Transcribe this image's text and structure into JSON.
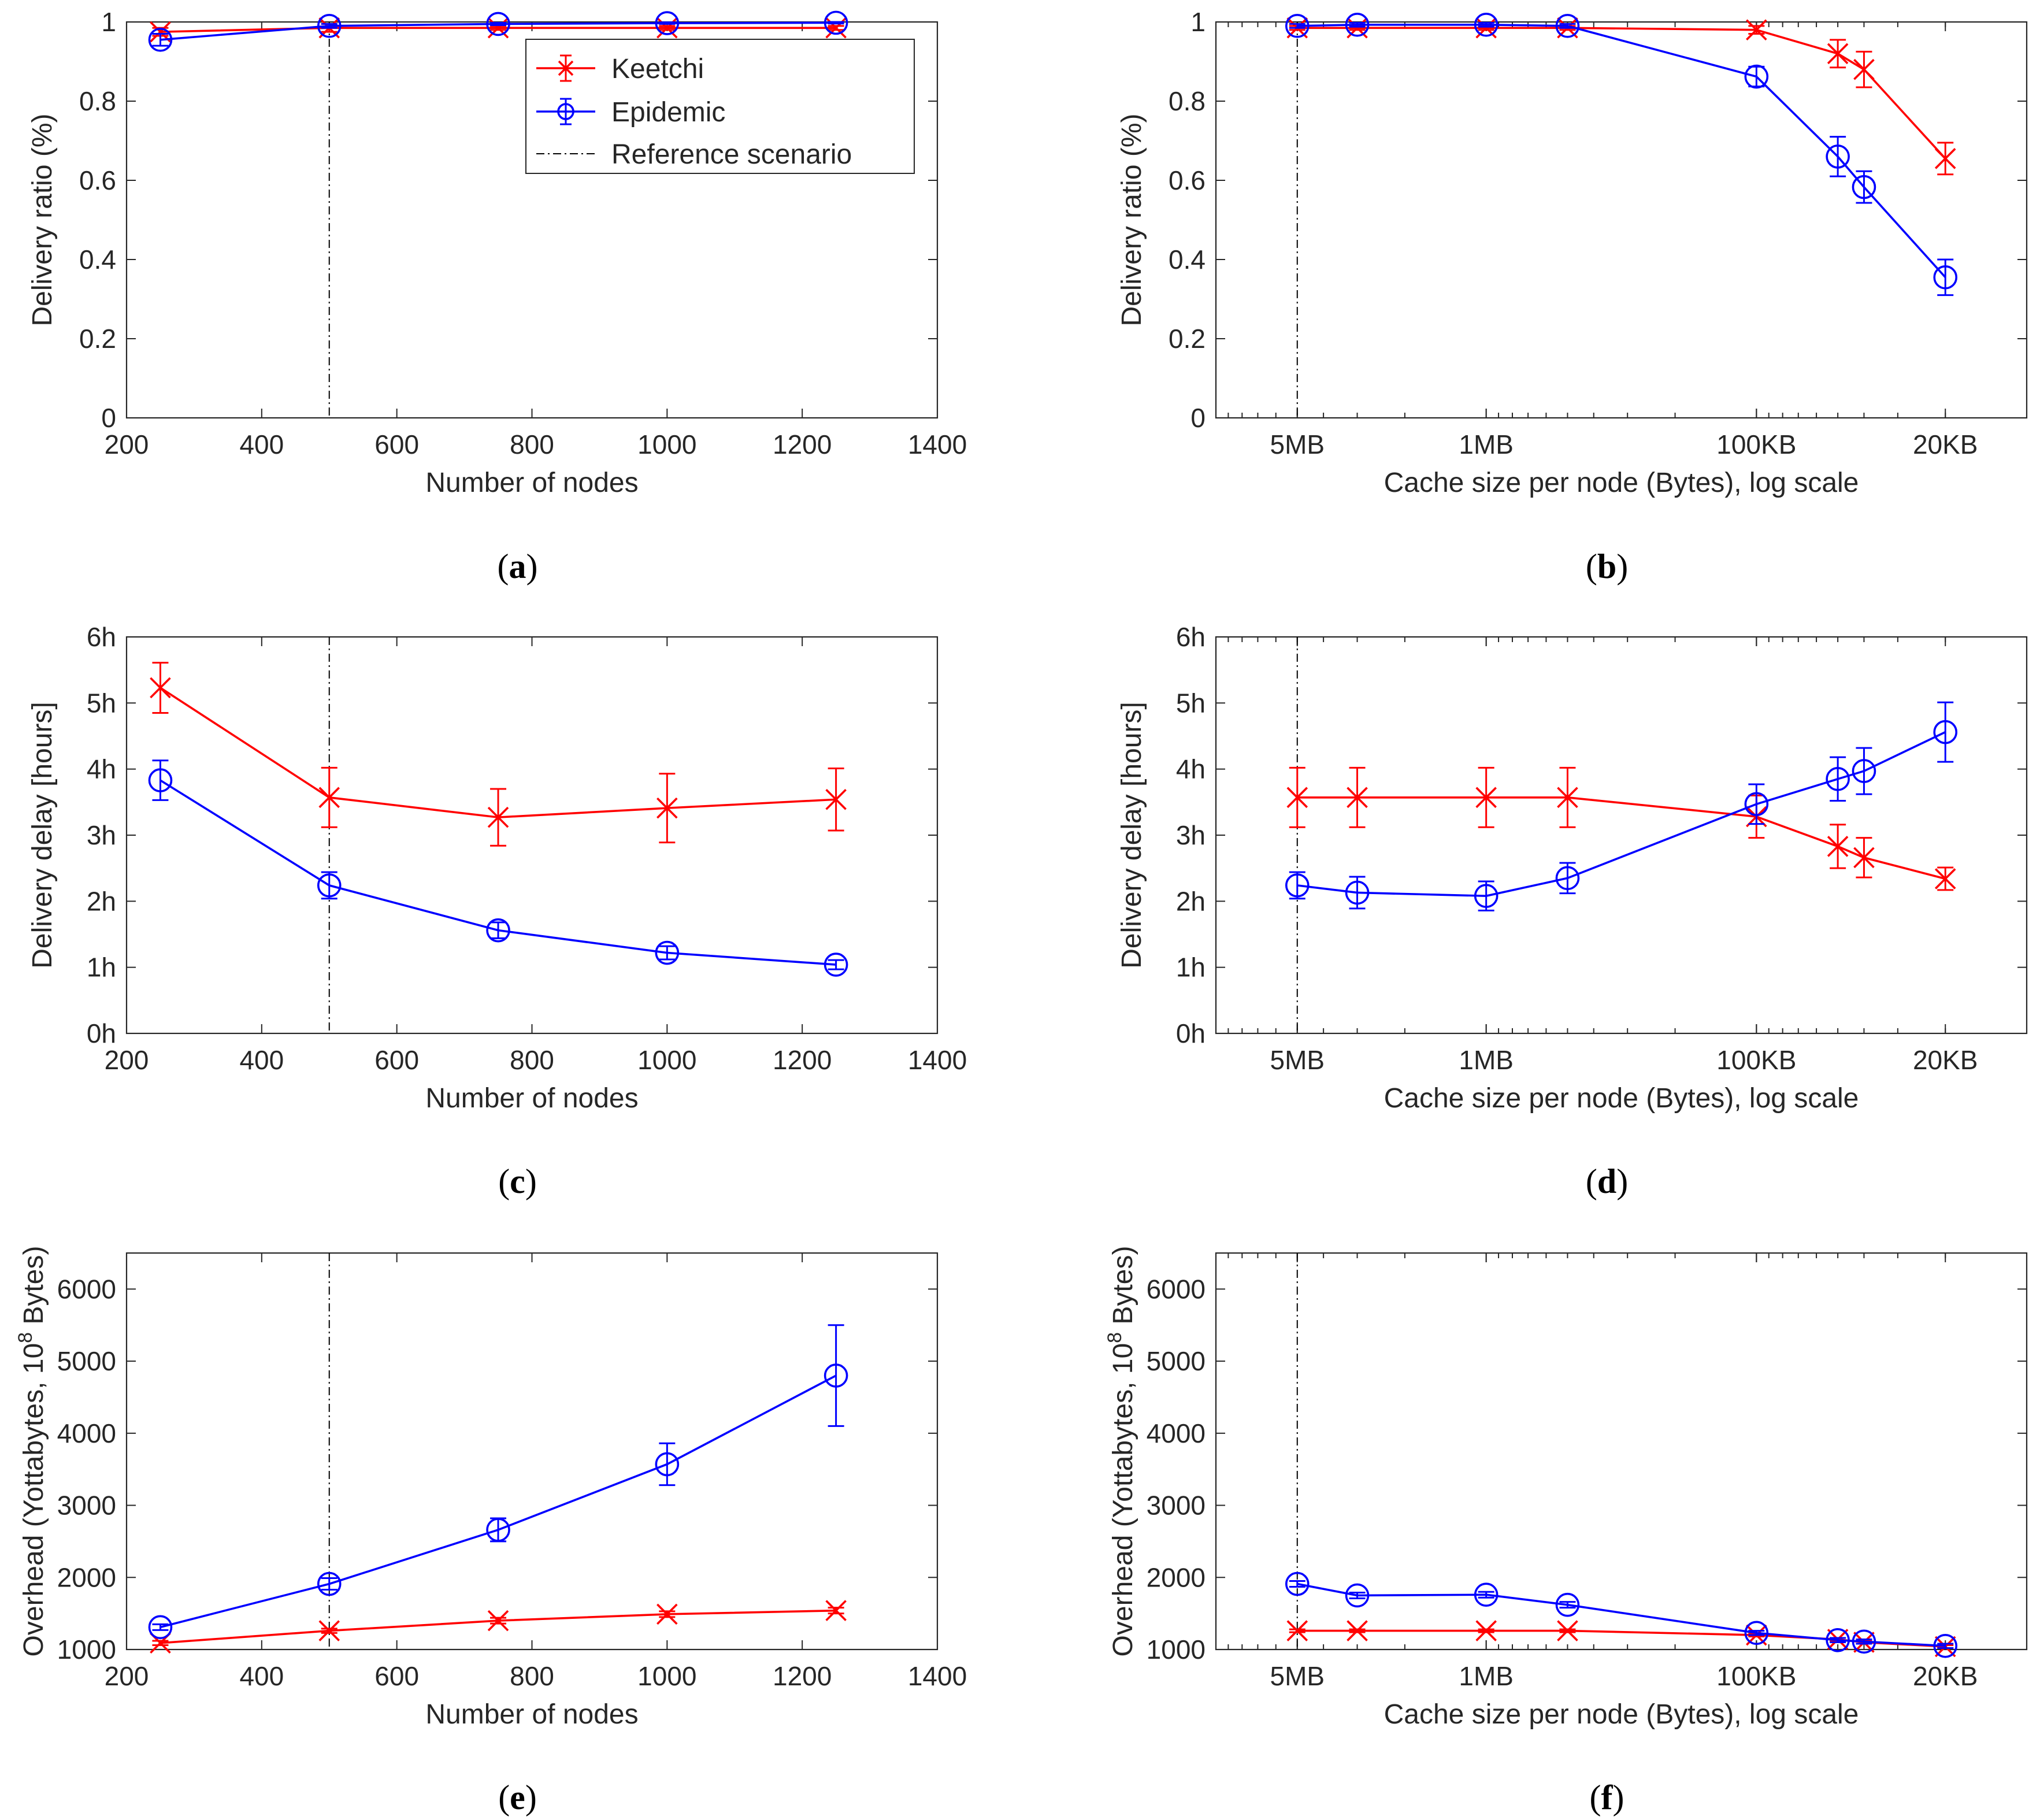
{
  "figure": {
    "legend": {
      "entries": [
        "Keetchi",
        "Epidemic",
        "Reference scenario"
      ]
    },
    "colors": {
      "keetchi": "#ff0000",
      "epidemic": "#0000ff",
      "reference": "#000000"
    }
  },
  "chart_data": [
    {
      "id": "a",
      "type": "line",
      "caption_letter": "a",
      "xlabel": "Number of nodes",
      "ylabel": "Delivery ratio (%)",
      "xscale": "linear",
      "xlim": [
        200,
        1400
      ],
      "ylim": [
        0,
        1
      ],
      "xticks": [
        200,
        400,
        600,
        800,
        1000,
        1200,
        1400
      ],
      "xtick_labels": [
        "200",
        "400",
        "600",
        "800",
        "1000",
        "1200",
        "1400"
      ],
      "yticks": [
        0,
        0.2,
        0.4,
        0.6,
        0.8,
        1
      ],
      "ytick_labels": [
        "0",
        "0.2",
        "0.4",
        "0.6",
        "0.8",
        "1"
      ],
      "reference_x": 500,
      "legend": true,
      "legend_position": "top-right",
      "series": [
        {
          "name": "Keetchi",
          "marker": "x",
          "x": [
            250,
            500,
            750,
            1000,
            1250
          ],
          "y": [
            0.975,
            0.985,
            0.985,
            0.985,
            0.985
          ],
          "err": [
            0.01,
            0.01,
            0.005,
            0.005,
            0.005
          ]
        },
        {
          "name": "Epidemic",
          "marker": "o",
          "x": [
            250,
            500,
            750,
            1000,
            1250
          ],
          "y": [
            0.955,
            0.99,
            0.995,
            0.997,
            0.998
          ],
          "err": [
            0.015,
            0.005,
            0.003,
            0.002,
            0.002
          ]
        }
      ]
    },
    {
      "id": "b",
      "type": "line",
      "caption_letter": "b",
      "xlabel": "Cache size per node (Bytes), log scale",
      "ylabel": "Delivery ratio (%)",
      "xscale": "log-reversed",
      "xlim": [
        10000000,
        10000
      ],
      "ylim": [
        0,
        1
      ],
      "xticks": [
        5000000,
        1000000,
        100000,
        20000
      ],
      "xtick_labels": [
        "5MB",
        "1MB",
        "100KB",
        "20KB"
      ],
      "yticks": [
        0,
        0.2,
        0.4,
        0.6,
        0.8,
        1
      ],
      "ytick_labels": [
        "0",
        "0.2",
        "0.4",
        "0.6",
        "0.8",
        "1"
      ],
      "reference_x": 5000000,
      "legend": false,
      "series": [
        {
          "name": "Keetchi",
          "marker": "x",
          "x": [
            5000000,
            3000000,
            1000000,
            500000,
            100000,
            50000,
            40000,
            20000
          ],
          "y": [
            0.985,
            0.985,
            0.985,
            0.985,
            0.98,
            0.92,
            0.88,
            0.655
          ],
          "err": [
            0.005,
            0.005,
            0.005,
            0.005,
            0.01,
            0.035,
            0.045,
            0.04
          ]
        },
        {
          "name": "Epidemic",
          "marker": "o",
          "x": [
            5000000,
            3000000,
            1000000,
            500000,
            100000,
            50000,
            40000,
            20000
          ],
          "y": [
            0.99,
            0.993,
            0.993,
            0.99,
            0.862,
            0.66,
            0.583,
            0.355
          ],
          "err": [
            0.005,
            0.005,
            0.005,
            0.005,
            0.025,
            0.05,
            0.04,
            0.045
          ]
        }
      ]
    },
    {
      "id": "c",
      "type": "line",
      "caption_letter": "c",
      "xlabel": "Number of nodes",
      "ylabel": "Delivery delay [hours]",
      "xscale": "linear",
      "xlim": [
        200,
        1400
      ],
      "ylim": [
        0,
        6
      ],
      "xticks": [
        200,
        400,
        600,
        800,
        1000,
        1200,
        1400
      ],
      "xtick_labels": [
        "200",
        "400",
        "600",
        "800",
        "1000",
        "1200",
        "1400"
      ],
      "yticks": [
        0,
        1,
        2,
        3,
        4,
        5,
        6
      ],
      "ytick_labels": [
        "0h",
        "1h",
        "2h",
        "3h",
        "4h",
        "5h",
        "6h"
      ],
      "reference_x": 500,
      "legend": false,
      "series": [
        {
          "name": "Keetchi",
          "marker": "x",
          "x": [
            250,
            500,
            750,
            1000,
            1250
          ],
          "y": [
            5.23,
            3.57,
            3.27,
            3.41,
            3.54
          ],
          "err": [
            0.38,
            0.45,
            0.43,
            0.52,
            0.47
          ]
        },
        {
          "name": "Epidemic",
          "marker": "o",
          "x": [
            250,
            500,
            750,
            1000,
            1250
          ],
          "y": [
            3.83,
            2.24,
            1.56,
            1.22,
            1.04
          ],
          "err": [
            0.3,
            0.2,
            0.12,
            0.1,
            0.07
          ]
        }
      ]
    },
    {
      "id": "d",
      "type": "line",
      "caption_letter": "d",
      "xlabel": "Cache size per node (Bytes), log scale",
      "ylabel": "Delivery delay [hours]",
      "xscale": "log-reversed",
      "xlim": [
        10000000,
        10000
      ],
      "ylim": [
        0,
        6
      ],
      "xticks": [
        5000000,
        1000000,
        100000,
        20000
      ],
      "xtick_labels": [
        "5MB",
        "1MB",
        "100KB",
        "20KB"
      ],
      "yticks": [
        0,
        1,
        2,
        3,
        4,
        5,
        6
      ],
      "ytick_labels": [
        "0h",
        "1h",
        "2h",
        "3h",
        "4h",
        "5h",
        "6h"
      ],
      "reference_x": 5000000,
      "legend": false,
      "series": [
        {
          "name": "Keetchi",
          "marker": "x",
          "x": [
            5000000,
            3000000,
            1000000,
            500000,
            100000,
            50000,
            40000,
            20000
          ],
          "y": [
            3.57,
            3.57,
            3.57,
            3.57,
            3.28,
            2.83,
            2.66,
            2.34
          ],
          "err": [
            0.45,
            0.45,
            0.45,
            0.45,
            0.32,
            0.33,
            0.3,
            0.17
          ]
        },
        {
          "name": "Epidemic",
          "marker": "o",
          "x": [
            5000000,
            3000000,
            1000000,
            500000,
            100000,
            50000,
            40000,
            20000
          ],
          "y": [
            2.24,
            2.13,
            2.08,
            2.35,
            3.47,
            3.85,
            3.97,
            4.56
          ],
          "err": [
            0.2,
            0.24,
            0.22,
            0.23,
            0.3,
            0.33,
            0.35,
            0.45
          ]
        }
      ]
    },
    {
      "id": "e",
      "type": "line",
      "caption_letter": "e",
      "xlabel": "Number of nodes",
      "ylabel_prefix": "Overhead (Yottabytes, 10",
      "ylabel_exp": "8",
      "ylabel_suffix": " Bytes)",
      "xscale": "linear",
      "xlim": [
        200,
        1400
      ],
      "ylim": [
        1000,
        6500
      ],
      "xticks": [
        200,
        400,
        600,
        800,
        1000,
        1200,
        1400
      ],
      "xtick_labels": [
        "200",
        "400",
        "600",
        "800",
        "1000",
        "1200",
        "1400"
      ],
      "yticks": [
        1000,
        2000,
        3000,
        4000,
        5000,
        6000
      ],
      "ytick_labels": [
        "1000",
        "2000",
        "3000",
        "4000",
        "5000",
        "6000"
      ],
      "reference_x": 500,
      "legend": false,
      "series": [
        {
          "name": "Keetchi",
          "marker": "x",
          "x": [
            250,
            500,
            750,
            1000,
            1250
          ],
          "y": [
            1090,
            1260,
            1400,
            1490,
            1540
          ],
          "err": [
            30,
            30,
            40,
            40,
            40
          ]
        },
        {
          "name": "Epidemic",
          "marker": "o",
          "x": [
            250,
            500,
            750,
            1000,
            1250
          ],
          "y": [
            1310,
            1910,
            2660,
            3570,
            4800
          ],
          "err": [
            40,
            80,
            160,
            290,
            700
          ]
        }
      ]
    },
    {
      "id": "f",
      "type": "line",
      "caption_letter": "f",
      "xlabel": "Cache size per node (Bytes), log scale",
      "ylabel_prefix": "Overhead (Yottabytes, 10",
      "ylabel_exp": "8",
      "ylabel_suffix": " Bytes)",
      "xscale": "log-reversed",
      "xlim": [
        10000000,
        10000
      ],
      "ylim": [
        1000,
        6500
      ],
      "xticks": [
        5000000,
        1000000,
        100000,
        20000
      ],
      "xtick_labels": [
        "5MB",
        "1MB",
        "100KB",
        "20KB"
      ],
      "yticks": [
        1000,
        2000,
        3000,
        4000,
        5000,
        6000
      ],
      "ytick_labels": [
        "1000",
        "2000",
        "3000",
        "4000",
        "5000",
        "6000"
      ],
      "reference_x": 5000000,
      "legend": false,
      "series": [
        {
          "name": "Keetchi",
          "marker": "x",
          "x": [
            5000000,
            3000000,
            1000000,
            500000,
            100000,
            50000,
            40000,
            20000
          ],
          "y": [
            1260,
            1260,
            1260,
            1260,
            1200,
            1140,
            1100,
            1040
          ],
          "err": [
            20,
            20,
            20,
            20,
            20,
            20,
            20,
            20
          ]
        },
        {
          "name": "Epidemic",
          "marker": "o",
          "x": [
            5000000,
            3000000,
            1000000,
            500000,
            100000,
            50000,
            40000,
            20000
          ],
          "y": [
            1910,
            1750,
            1760,
            1620,
            1230,
            1130,
            1110,
            1050
          ],
          "err": [
            40,
            40,
            40,
            40,
            30,
            30,
            30,
            30
          ]
        }
      ]
    }
  ]
}
